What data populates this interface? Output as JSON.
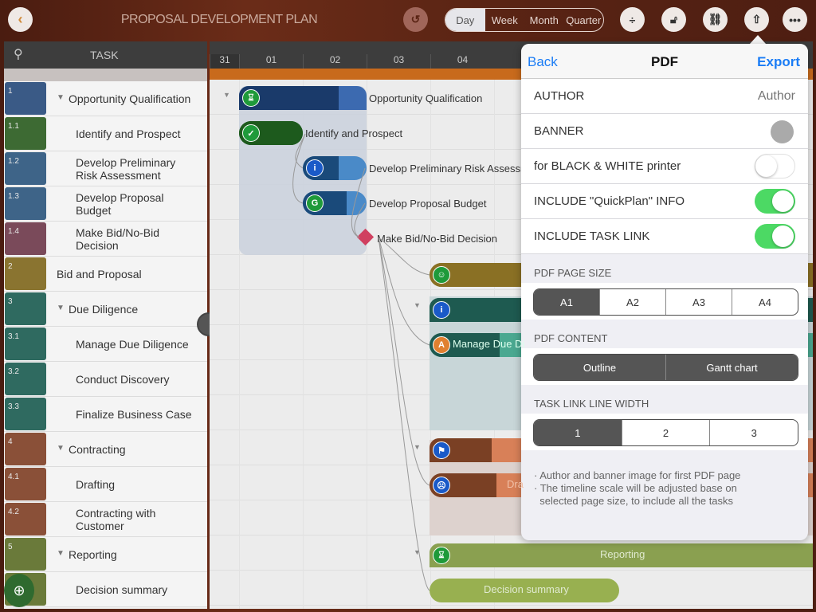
{
  "header": {
    "title": "PROPOSAL DEVELOPMENT PLAN",
    "scales": [
      "Day",
      "Week",
      "Month",
      "Quarter"
    ],
    "active_scale": "Day"
  },
  "task_panel": {
    "header": "TASK"
  },
  "tasks": [
    {
      "num": "1",
      "name": "Opportunity Qualification",
      "color": "#3a5a86",
      "group": true
    },
    {
      "num": "1.1",
      "name": "Identify and Prospect",
      "color": "#3d6a33"
    },
    {
      "num": "1.2",
      "name": "Develop Preliminary Risk Assessment",
      "color": "#3e6488"
    },
    {
      "num": "1.3",
      "name": "Develop Proposal Budget",
      "color": "#3e6488"
    },
    {
      "num": "1.4",
      "name": "Make Bid/No-Bid Decision",
      "color": "#7a4a5a"
    },
    {
      "num": "2",
      "name": "Bid and Proposal",
      "color": "#8a7430"
    },
    {
      "num": "3",
      "name": "Due Diligence",
      "color": "#2f6a60",
      "group": true
    },
    {
      "num": "3.1",
      "name": "Manage Due Diligence",
      "color": "#2f6a60"
    },
    {
      "num": "3.2",
      "name": "Conduct Discovery",
      "color": "#2f6a60"
    },
    {
      "num": "3.3",
      "name": "Finalize Business Case",
      "color": "#2f6a60"
    },
    {
      "num": "4",
      "name": "Contracting",
      "color": "#8a5038",
      "group": true
    },
    {
      "num": "4.1",
      "name": "Drafting",
      "color": "#8a5038"
    },
    {
      "num": "4.2",
      "name": "Contracting with Customer",
      "color": "#8a5038"
    },
    {
      "num": "5",
      "name": "Reporting",
      "color": "#6a7a3a",
      "group": true
    },
    {
      "num": "5.1",
      "name": "Decision summary",
      "color": "#6a7a3a"
    }
  ],
  "timeline": {
    "days": [
      "31",
      "01",
      "02",
      "03",
      "04"
    ]
  },
  "gantt_labels": {
    "opp": "Opportunity Qualification",
    "identify": "Identify and Prospect",
    "risk": "Develop Preliminary Risk Assessm",
    "budget": "Develop Proposal Budget",
    "bid": "Make Bid/No-Bid Decision",
    "manage": "Manage Due Di",
    "drafting": "Dra",
    "reporting": "Reporting",
    "decision": "Decision summary"
  },
  "pdf": {
    "back": "Back",
    "title": "PDF",
    "export": "Export",
    "author_label": "AUTHOR",
    "author_placeholder": "Author",
    "banner_label": "BANNER",
    "bw_label": "for BLACK & WHITE printer",
    "bw_on": false,
    "quickplan_label": "INCLUDE \"QuickPlan\" INFO",
    "quickplan_on": true,
    "tasklink_label": "INCLUDE TASK LINK",
    "tasklink_on": true,
    "page_size_header": "PDF PAGE SIZE",
    "page_sizes": [
      "A1",
      "A2",
      "A3",
      "A4"
    ],
    "page_size_selected": "A1",
    "content_header": "PDF CONTENT",
    "content_options": [
      "Outline",
      "Gantt chart"
    ],
    "content_selected": [
      "Outline",
      "Gantt chart"
    ],
    "line_width_header": "TASK LINK LINE WIDTH",
    "line_widths": [
      "1",
      "2",
      "3"
    ],
    "line_width_selected": "1",
    "notes": [
      "· Author and banner image for first PDF page",
      "· The timeline scale will be adjusted base on",
      "  selected page size, to include all the tasks"
    ]
  },
  "colors": {
    "accent": "#1a7cf5",
    "toggle_on": "#4cd964"
  }
}
